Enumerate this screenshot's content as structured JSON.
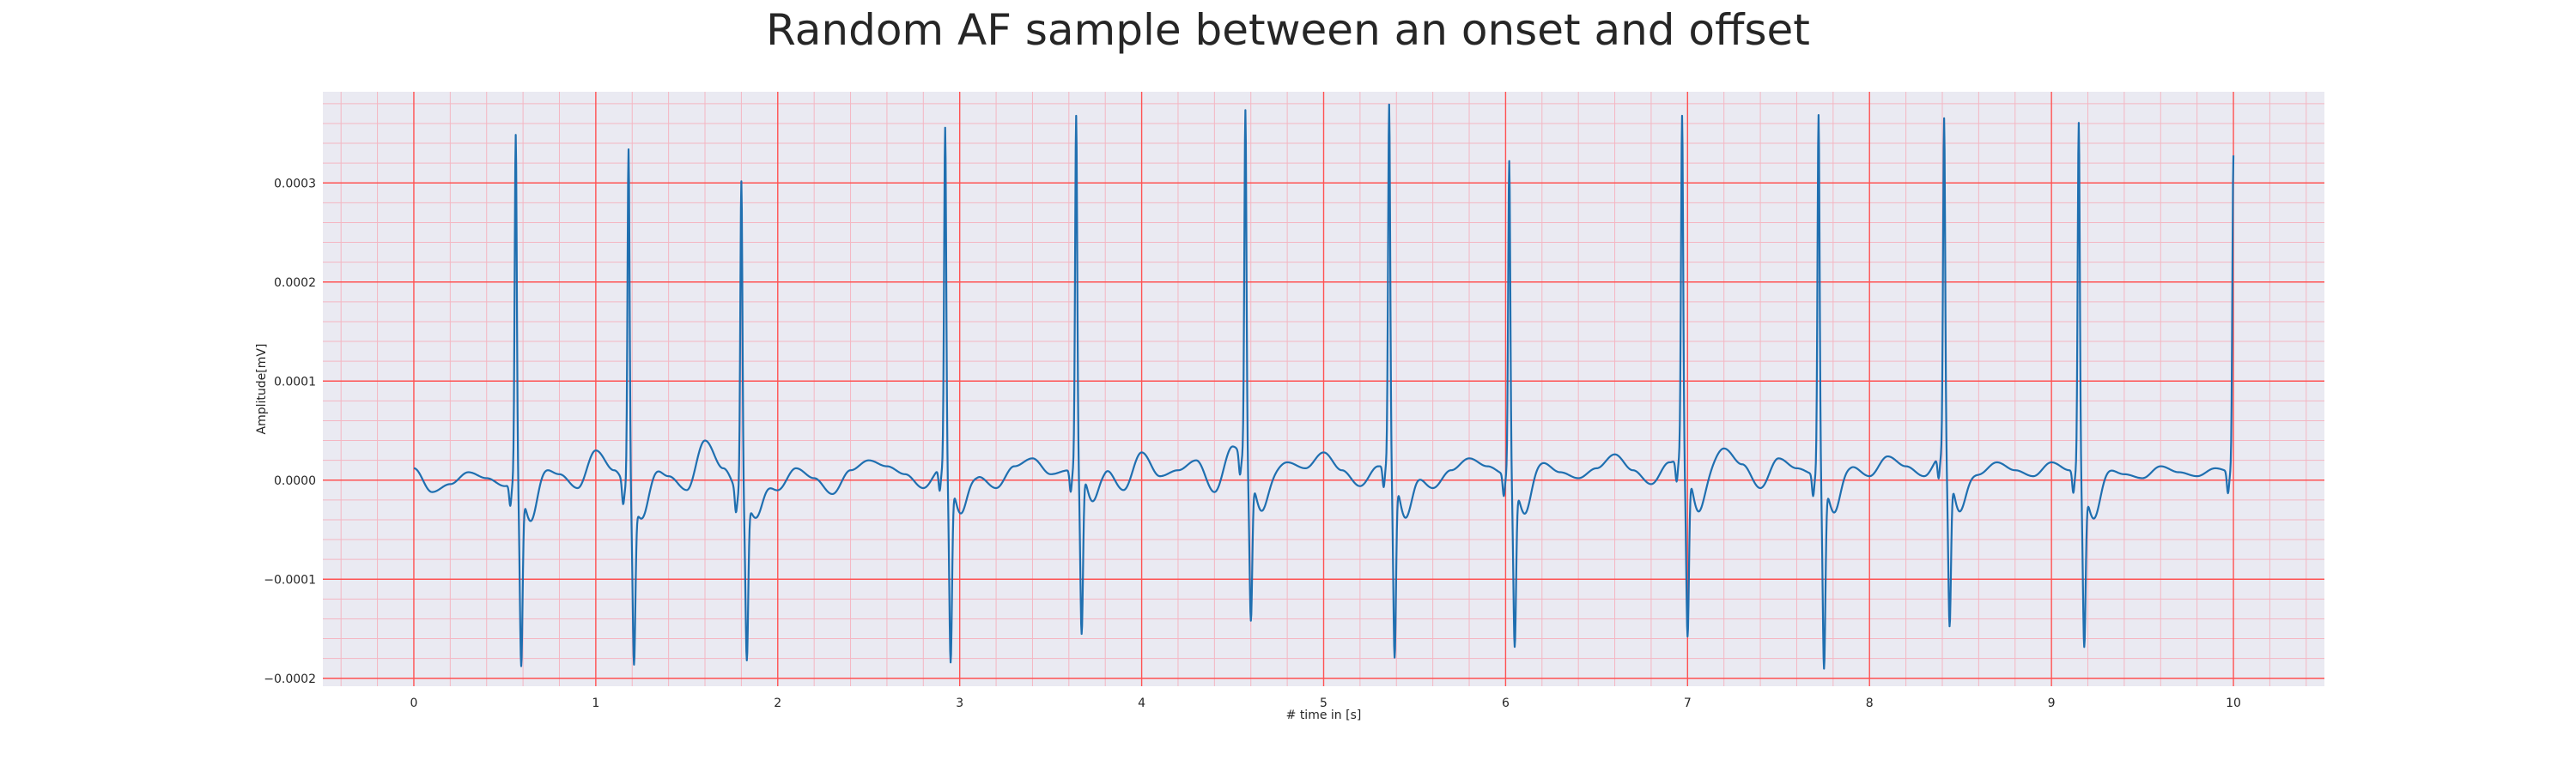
{
  "chart_data": {
    "type": "line",
    "title": "Random AF sample between an onset and offset",
    "xlabel": "# time in [s]",
    "ylabel": "Amplitude[mV]",
    "xlim": [
      -0.5,
      10.5
    ],
    "ylim": [
      -0.000208,
      0.000392
    ],
    "x_ticks": [
      0,
      1,
      2,
      3,
      4,
      5,
      6,
      7,
      8,
      9,
      10
    ],
    "x_tick_labels": [
      "0",
      "1",
      "2",
      "3",
      "4",
      "5",
      "6",
      "7",
      "8",
      "9",
      "10"
    ],
    "y_ticks": [
      -0.0002,
      -0.0001,
      0.0,
      0.0001,
      0.0002,
      0.0003
    ],
    "y_tick_labels": [
      "−0.0002",
      "−0.0001",
      "0.0000",
      "0.0001",
      "0.0002",
      "0.0003"
    ],
    "grid": "on",
    "minor_grid": "on",
    "background_color": "#eaeaf2",
    "major_grid_color": "#ff5252",
    "minor_grid_color": "#f4b6c2",
    "series": [
      {
        "color": "#1f6fb0",
        "x_start": 0.0,
        "x_end": 10.0,
        "baseline_samples": [
          1.2e-05,
          -1.2e-05,
          -4e-06,
          8e-06,
          2e-06,
          -6e-06,
          5e-06,
          1.4e-05,
          6e-06,
          -8e-06,
          3e-05,
          1e-05,
          -1.4e-05,
          1.8e-05,
          4e-06,
          -1e-05,
          4e-05,
          1.2e-05,
          -1.6e-05,
          8e-06,
          -1e-05,
          1.2e-05,
          2e-06,
          -1.4e-05,
          1e-05,
          2e-05,
          1.4e-05,
          6e-06,
          -8e-06,
          1.2e-05,
          1.8e-05,
          4e-06,
          -8e-06,
          1.4e-05,
          2.2e-05,
          6e-06,
          1e-05,
          2.8e-05,
          1.2e-05,
          -1e-05,
          2.8e-05,
          4e-06,
          1e-05,
          2e-05,
          -1.2e-05,
          3.4e-05,
          1.6e-05,
          6e-06,
          1.8e-05,
          1.2e-05,
          2.8e-05,
          1e-05,
          -6e-06,
          1.4e-05,
          2e-05,
          6e-06,
          -8e-06,
          1e-05,
          2.2e-05,
          1.4e-05,
          6e-06,
          1.2e-05,
          1.8e-05,
          8e-06,
          2e-06,
          1.2e-05,
          2.6e-05,
          1e-05,
          -4e-06,
          1.8e-05,
          2.6e-05,
          1e-05,
          3.2e-05,
          1.6e-05,
          -8e-06,
          2.2e-05,
          1.2e-05,
          6e-06,
          2e-05,
          1.4e-05,
          4e-06,
          2.4e-05,
          1.4e-05,
          4e-06,
          2.6e-05,
          1.2e-05,
          6e-06,
          1.8e-05,
          1e-05,
          4e-06,
          1.8e-05,
          1e-05,
          4e-06,
          1.2e-05,
          6e-06,
          2e-06,
          1.4e-05,
          8e-06,
          4e-06,
          1.2e-05,
          8e-06
        ],
        "beats": [
          {
            "t": 0.56,
            "r": 0.00035,
            "s": -0.000178
          },
          {
            "t": 1.18,
            "r": 0.000348,
            "s": -0.00016
          },
          {
            "t": 1.8,
            "r": 0.00032,
            "s": -0.000158
          },
          {
            "t": 2.92,
            "r": 0.000346,
            "s": -0.000184
          },
          {
            "t": 3.64,
            "r": 0.000354,
            "s": -0.000166
          },
          {
            "t": 4.57,
            "r": 0.000356,
            "s": -0.000146
          },
          {
            "t": 5.36,
            "r": 0.000364,
            "s": -0.000184
          },
          {
            "t": 6.02,
            "r": 0.000318,
            "s": -0.000164
          },
          {
            "t": 6.97,
            "r": 0.000346,
            "s": -0.00017
          },
          {
            "t": 7.72,
            "r": 0.000364,
            "s": -0.000188
          },
          {
            "t": 8.41,
            "r": 0.000342,
            "s": -0.000156
          },
          {
            "t": 9.15,
            "r": 0.000356,
            "s": -0.00016
          },
          {
            "t": 10.0,
            "r": 0.00032,
            "s": -2e-05
          }
        ]
      }
    ]
  }
}
